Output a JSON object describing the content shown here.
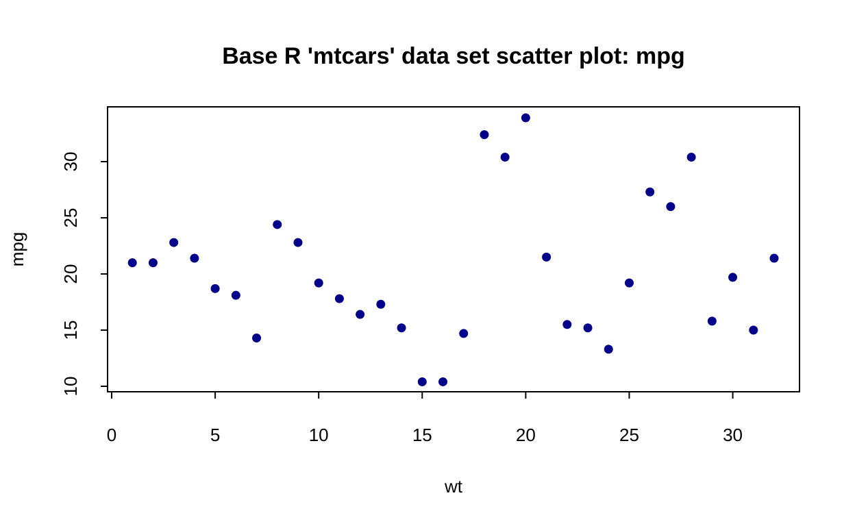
{
  "chart_data": {
    "type": "scatter",
    "title": "Base R 'mtcars' data set scatter plot: mpg",
    "xlabel": "wt",
    "ylabel": "mpg",
    "xlim": [
      0,
      33
    ],
    "ylim": [
      10,
      34.6
    ],
    "xticks": [
      0,
      5,
      10,
      15,
      20,
      25,
      30
    ],
    "yticks": [
      10,
      15,
      20,
      25,
      30
    ],
    "point_color": "#00008B",
    "grid": false,
    "x": [
      1,
      2,
      3,
      4,
      5,
      6,
      7,
      8,
      9,
      10,
      11,
      12,
      13,
      14,
      15,
      16,
      17,
      18,
      19,
      20,
      21,
      22,
      23,
      24,
      25,
      26,
      27,
      28,
      29,
      30,
      31,
      32
    ],
    "y": [
      21.0,
      21.0,
      22.8,
      21.4,
      18.7,
      18.1,
      14.3,
      24.4,
      22.8,
      19.2,
      17.8,
      16.4,
      17.3,
      15.2,
      10.4,
      10.4,
      14.7,
      32.4,
      30.4,
      33.9,
      21.5,
      15.5,
      15.2,
      13.3,
      19.2,
      27.3,
      26.0,
      30.4,
      15.8,
      19.7,
      15.0,
      21.4
    ]
  }
}
